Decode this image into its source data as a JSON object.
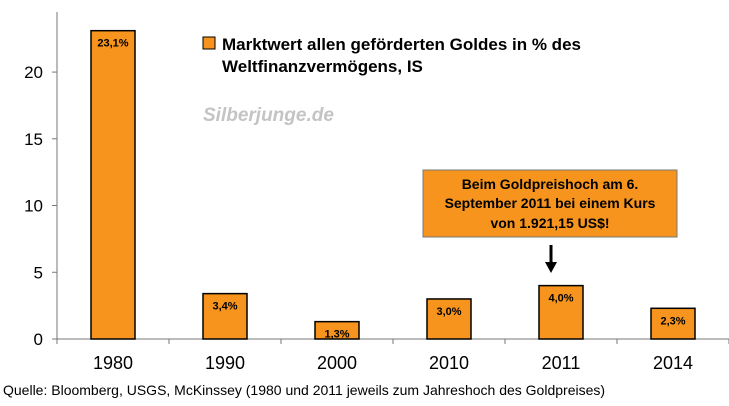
{
  "colors": {
    "bar_fill": "#f7941d",
    "bar_stroke": "#000000",
    "box_fill": "#f7941d"
  },
  "chart_data": {
    "type": "bar",
    "categories": [
      "1980",
      "1990",
      "2000",
      "2010",
      "2011",
      "2014"
    ],
    "values": [
      23.1,
      3.4,
      1.3,
      3.0,
      4.0,
      2.3
    ],
    "data_labels": [
      "23,1%",
      "3,4%",
      "1,3%",
      "3,0%",
      "4,0%",
      "2,3%"
    ],
    "ylim": [
      0,
      24.5
    ],
    "yticks": [
      0,
      5,
      10,
      15,
      20
    ],
    "legend": {
      "label_line1": "Marktwert allen geförderten Goldes in % des",
      "label_line2": "Weltfinanzvermögens, IS",
      "placement": "top-right"
    },
    "watermark": "Silberjunge.de",
    "annotation": {
      "category": "2011",
      "lines": [
        "Beim Goldpreishoch am 6.",
        "September 2011 bei einem Kurs",
        "von 1.921,15 US$!"
      ]
    }
  },
  "source": "Quelle: Bloomberg, USGS, McKinssey (1980 und 2011 jeweils zum Jahreshoch des Goldpreises)"
}
